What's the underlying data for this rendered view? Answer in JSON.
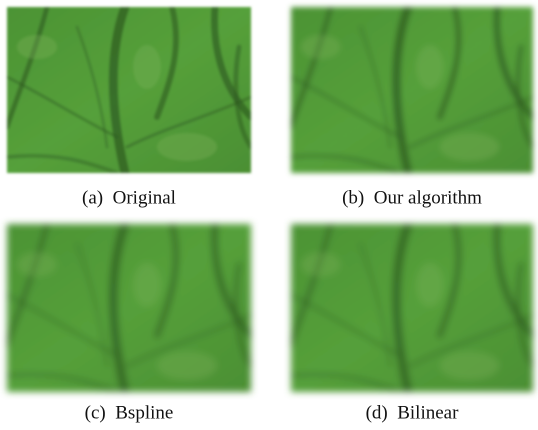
{
  "panels": [
    {
      "caption": "(a)  Original"
    },
    {
      "caption": "(b)  Our algorithm"
    },
    {
      "caption": "(c)  Bspline"
    },
    {
      "caption": "(d)  Bilinear"
    }
  ]
}
